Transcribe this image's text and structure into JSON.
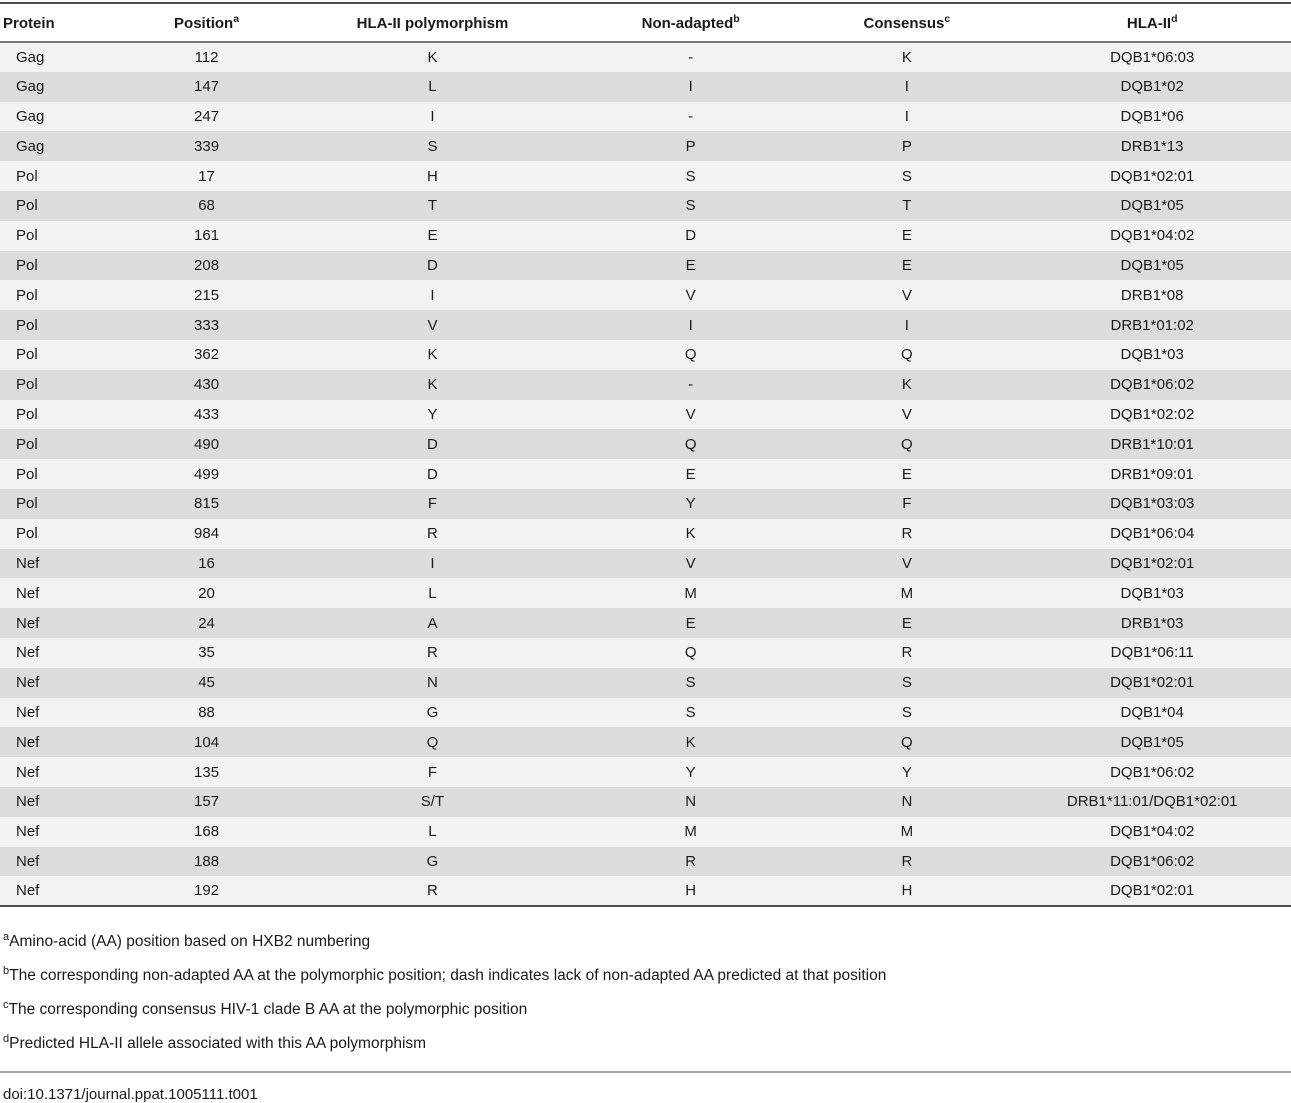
{
  "table": {
    "columns": [
      {
        "key": "protein",
        "label": "Protein",
        "sup": ""
      },
      {
        "key": "position",
        "label": "Position",
        "sup": "a"
      },
      {
        "key": "polymorphism",
        "label": "HLA-II polymorphism",
        "sup": ""
      },
      {
        "key": "non-adapted",
        "label": "Non-adapted",
        "sup": "b"
      },
      {
        "key": "consensus",
        "label": "Consensus",
        "sup": "c"
      },
      {
        "key": "hla-ii",
        "label": "HLA-II",
        "sup": "d"
      }
    ],
    "rows": [
      [
        "Gag",
        "112",
        "K",
        "-",
        "K",
        "DQB1*06:03"
      ],
      [
        "Gag",
        "147",
        "L",
        "I",
        "I",
        "DQB1*02"
      ],
      [
        "Gag",
        "247",
        "I",
        "-",
        "I",
        "DQB1*06"
      ],
      [
        "Gag",
        "339",
        "S",
        "P",
        "P",
        "DRB1*13"
      ],
      [
        "Pol",
        "17",
        "H",
        "S",
        "S",
        "DQB1*02:01"
      ],
      [
        "Pol",
        "68",
        "T",
        "S",
        "T",
        "DQB1*05"
      ],
      [
        "Pol",
        "161",
        "E",
        "D",
        "E",
        "DQB1*04:02"
      ],
      [
        "Pol",
        "208",
        "D",
        "E",
        "E",
        "DQB1*05"
      ],
      [
        "Pol",
        "215",
        "I",
        "V",
        "V",
        "DRB1*08"
      ],
      [
        "Pol",
        "333",
        "V",
        "I",
        "I",
        "DRB1*01:02"
      ],
      [
        "Pol",
        "362",
        "K",
        "Q",
        "Q",
        "DQB1*03"
      ],
      [
        "Pol",
        "430",
        "K",
        "-",
        "K",
        "DQB1*06:02"
      ],
      [
        "Pol",
        "433",
        "Y",
        "V",
        "V",
        "DQB1*02:02"
      ],
      [
        "Pol",
        "490",
        "D",
        "Q",
        "Q",
        "DRB1*10:01"
      ],
      [
        "Pol",
        "499",
        "D",
        "E",
        "E",
        "DRB1*09:01"
      ],
      [
        "Pol",
        "815",
        "F",
        "Y",
        "F",
        "DQB1*03:03"
      ],
      [
        "Pol",
        "984",
        "R",
        "K",
        "R",
        "DQB1*06:04"
      ],
      [
        "Nef",
        "16",
        "I",
        "V",
        "V",
        "DQB1*02:01"
      ],
      [
        "Nef",
        "20",
        "L",
        "M",
        "M",
        "DQB1*03"
      ],
      [
        "Nef",
        "24",
        "A",
        "E",
        "E",
        "DRB1*03"
      ],
      [
        "Nef",
        "35",
        "R",
        "Q",
        "R",
        "DQB1*06:11"
      ],
      [
        "Nef",
        "45",
        "N",
        "S",
        "S",
        "DQB1*02:01"
      ],
      [
        "Nef",
        "88",
        "G",
        "S",
        "S",
        "DQB1*04"
      ],
      [
        "Nef",
        "104",
        "Q",
        "K",
        "Q",
        "DQB1*05"
      ],
      [
        "Nef",
        "135",
        "F",
        "Y",
        "Y",
        "DQB1*06:02"
      ],
      [
        "Nef",
        "157",
        "S/T",
        "N",
        "N",
        "DRB1*11:01/DQB1*02:01"
      ],
      [
        "Nef",
        "168",
        "L",
        "M",
        "M",
        "DQB1*04:02"
      ],
      [
        "Nef",
        "188",
        "G",
        "R",
        "R",
        "DQB1*06:02"
      ],
      [
        "Nef",
        "192",
        "R",
        "H",
        "H",
        "DQB1*02:01"
      ]
    ]
  },
  "footnotes": [
    {
      "sup": "a",
      "text": "Amino-acid (AA) position based on HXB2 numbering"
    },
    {
      "sup": "b",
      "text": "The corresponding non-adapted AA at the polymorphic position; dash indicates lack of non-adapted AA predicted at that position"
    },
    {
      "sup": "c",
      "text": "The corresponding consensus HIV-1 clade B AA at the polymorphic position"
    },
    {
      "sup": "d",
      "text": "Predicted HLA-II allele associated with this AA polymorphism"
    }
  ],
  "doi": "doi:10.1371/journal.ppat.1005111.t001",
  "colors": {
    "row_light": "#f2f2f2",
    "row_dark": "#dcdcdc",
    "border_dark": "#4d4d4d",
    "header_rule": "#757575",
    "footer_rule": "#a6a6a6",
    "text": "#1a1a1a"
  }
}
